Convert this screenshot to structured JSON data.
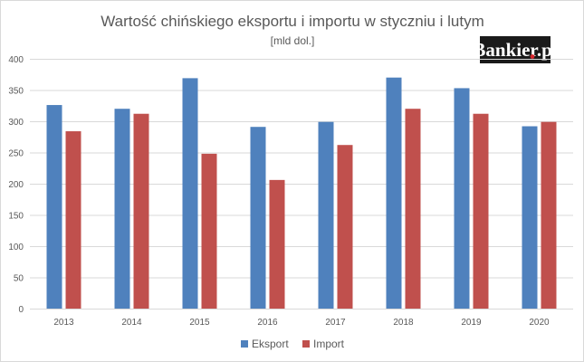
{
  "chart_data": {
    "type": "bar",
    "title": "Wartość chińskiego eksportu i importu w styczniu i lutym",
    "subtitle": "[mld dol.]",
    "categories": [
      "2013",
      "2014",
      "2015",
      "2016",
      "2017",
      "2018",
      "2019",
      "2020"
    ],
    "series": [
      {
        "name": "Eksport",
        "color": "#4f81bd",
        "values": [
          326,
          320,
          369,
          291,
          299,
          370,
          353,
          292
        ]
      },
      {
        "name": "Import",
        "color": "#c0504d",
        "values": [
          284,
          312,
          248,
          206,
          262,
          320,
          312,
          299
        ]
      }
    ],
    "ylim": [
      0,
      400
    ],
    "yticks": [
      0,
      50,
      100,
      150,
      200,
      250,
      300,
      350,
      400
    ],
    "grid": true,
    "legend": "bottom"
  },
  "logo": {
    "text": "Bankier.pl",
    "bg_color": "#1a1a1a",
    "dot_color": "#d7252d"
  }
}
